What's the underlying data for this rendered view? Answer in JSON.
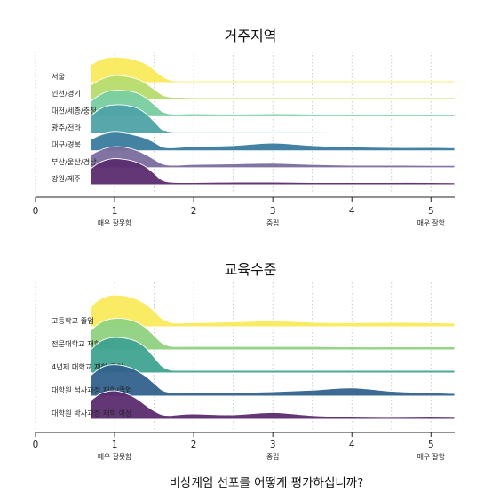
{
  "caption": "비상계엄 선포를 어떻게 평가하십니까?",
  "chart_data": [
    {
      "type": "ridgeline",
      "title": "거주지역",
      "xlim": [
        0,
        5.3
      ],
      "x_ticks": [
        "0",
        "1",
        "2",
        "3",
        "4",
        "5"
      ],
      "x_anchor_labels": [
        {
          "x": 1,
          "label": "매우 잘못함"
        },
        {
          "x": 3,
          "label": "중립"
        },
        {
          "x": 5,
          "label": "매우 잘함"
        }
      ],
      "grid": "vertical dotted at 0.5 steps",
      "series": [
        {
          "name": "서울",
          "color": "#f9ea5b",
          "x": [
            0.7,
            0.8,
            0.9,
            1.0,
            1.1,
            1.2,
            1.3,
            1.4,
            1.5,
            1.6,
            1.7,
            1.8,
            2.0,
            2.5,
            3.0,
            3.5,
            4.0,
            4.5,
            5.0,
            5.3
          ],
          "density": [
            0.55,
            0.7,
            0.78,
            0.8,
            0.79,
            0.75,
            0.68,
            0.58,
            0.4,
            0.2,
            0.08,
            0.05,
            0.05,
            0.05,
            0.05,
            0.05,
            0.05,
            0.05,
            0.05,
            0.05
          ]
        },
        {
          "name": "인천/경기",
          "color": "#b7dc6d",
          "x": [
            0.7,
            0.8,
            0.9,
            1.0,
            1.1,
            1.2,
            1.3,
            1.4,
            1.5,
            1.6,
            1.7,
            1.8,
            2.0,
            2.5,
            3.0,
            3.5,
            4.0,
            4.5,
            5.0,
            5.3
          ],
          "density": [
            0.45,
            0.6,
            0.7,
            0.75,
            0.74,
            0.7,
            0.63,
            0.5,
            0.32,
            0.15,
            0.08,
            0.07,
            0.06,
            0.06,
            0.06,
            0.06,
            0.06,
            0.06,
            0.06,
            0.06
          ]
        },
        {
          "name": "대전/세종/충청",
          "color": "#79cda0",
          "x": [
            0.7,
            0.8,
            0.9,
            1.0,
            1.1,
            1.2,
            1.3,
            1.4,
            1.5,
            1.6,
            1.7,
            1.8,
            2.0,
            2.5,
            3.0,
            3.5,
            4.0,
            4.5,
            5.0,
            5.3
          ],
          "density": [
            0.48,
            0.66,
            0.78,
            0.82,
            0.82,
            0.79,
            0.72,
            0.58,
            0.38,
            0.16,
            0.09,
            0.08,
            0.09,
            0.08,
            0.09,
            0.08,
            0.06,
            0.06,
            0.07,
            0.06
          ]
        },
        {
          "name": "광주/전라",
          "color": "#4da3a6",
          "x": [
            0.7,
            0.8,
            0.9,
            1.0,
            1.1,
            1.2,
            1.3,
            1.4,
            1.5,
            1.6,
            1.7,
            1.8,
            2.0,
            2.5,
            3.0,
            3.5,
            4.0,
            4.5,
            5.0,
            5.3
          ],
          "density": [
            0.55,
            0.75,
            0.86,
            0.9,
            0.9,
            0.86,
            0.78,
            0.62,
            0.38,
            0.13,
            0.04,
            0.03,
            0.03,
            0.03,
            0.03,
            0.03,
            0.02,
            0.02,
            0.02,
            0.02
          ]
        },
        {
          "name": "대구/경북",
          "color": "#3a7b9f",
          "x": [
            0.7,
            0.8,
            0.9,
            1.0,
            1.1,
            1.2,
            1.3,
            1.4,
            1.5,
            1.6,
            1.7,
            1.8,
            2.0,
            2.5,
            3.0,
            3.5,
            4.0,
            4.5,
            5.0,
            5.3
          ],
          "density": [
            0.35,
            0.47,
            0.55,
            0.58,
            0.56,
            0.52,
            0.46,
            0.38,
            0.26,
            0.12,
            0.09,
            0.1,
            0.13,
            0.16,
            0.24,
            0.16,
            0.12,
            0.1,
            0.1,
            0.09
          ]
        },
        {
          "name": "부산/울산/경남",
          "color": "#7a6d9e",
          "x": [
            0.7,
            0.8,
            0.9,
            1.0,
            1.1,
            1.2,
            1.3,
            1.4,
            1.5,
            1.6,
            1.7,
            1.8,
            2.0,
            2.5,
            3.0,
            3.5,
            4.0,
            4.5,
            5.0,
            5.3
          ],
          "density": [
            0.4,
            0.53,
            0.62,
            0.66,
            0.65,
            0.6,
            0.52,
            0.4,
            0.26,
            0.12,
            0.08,
            0.08,
            0.1,
            0.12,
            0.14,
            0.1,
            0.08,
            0.08,
            0.07,
            0.07
          ]
        },
        {
          "name": "강원/제주",
          "color": "#5b2c6f",
          "x": [
            0.7,
            0.8,
            0.9,
            1.0,
            1.1,
            1.2,
            1.3,
            1.4,
            1.5,
            1.6,
            1.7,
            1.8,
            2.0,
            2.5,
            3.0,
            3.5,
            4.0,
            4.5,
            5.0,
            5.3
          ],
          "density": [
            0.5,
            0.68,
            0.78,
            0.82,
            0.8,
            0.76,
            0.68,
            0.55,
            0.35,
            0.14,
            0.08,
            0.07,
            0.07,
            0.08,
            0.08,
            0.07,
            0.07,
            0.07,
            0.07,
            0.06
          ]
        }
      ]
    },
    {
      "type": "ridgeline",
      "title": "교육수준",
      "xlim": [
        0,
        5.3
      ],
      "x_ticks": [
        "0",
        "1",
        "2",
        "3",
        "4",
        "5"
      ],
      "x_anchor_labels": [
        {
          "x": 1,
          "label": "매우 잘못함"
        },
        {
          "x": 3,
          "label": "중립"
        },
        {
          "x": 5,
          "label": "매우 잘함"
        }
      ],
      "grid": "vertical dotted at 0.5 steps",
      "series": [
        {
          "name": "고등학교 졸업",
          "color": "#f9ea5b",
          "x": [
            0.7,
            0.8,
            0.9,
            1.0,
            1.1,
            1.2,
            1.3,
            1.4,
            1.5,
            1.6,
            1.7,
            1.8,
            2.0,
            2.5,
            3.0,
            3.5,
            4.0,
            4.5,
            5.0,
            5.3
          ],
          "density": [
            0.55,
            0.72,
            0.82,
            0.85,
            0.84,
            0.8,
            0.72,
            0.6,
            0.42,
            0.22,
            0.12,
            0.1,
            0.11,
            0.13,
            0.16,
            0.12,
            0.11,
            0.12,
            0.11,
            0.1
          ]
        },
        {
          "name": "전문대학교 재학/졸업",
          "color": "#8fd27f",
          "x": [
            0.7,
            0.8,
            0.9,
            1.0,
            1.1,
            1.2,
            1.3,
            1.4,
            1.5,
            1.6,
            1.7,
            1.8,
            2.0,
            2.5,
            3.0,
            3.5,
            4.0,
            4.5,
            5.0,
            5.3
          ],
          "density": [
            0.52,
            0.7,
            0.8,
            0.84,
            0.84,
            0.8,
            0.72,
            0.58,
            0.38,
            0.18,
            0.1,
            0.09,
            0.09,
            0.09,
            0.09,
            0.09,
            0.08,
            0.08,
            0.08,
            0.08
          ]
        },
        {
          "name": "4년제 대학교 재학/졸업",
          "color": "#3fa390",
          "x": [
            0.7,
            0.8,
            0.9,
            1.0,
            1.1,
            1.2,
            1.3,
            1.4,
            1.5,
            1.6,
            1.7,
            1.8,
            2.0,
            2.5,
            3.0,
            3.5,
            4.0,
            4.5,
            5.0,
            5.3
          ],
          "density": [
            0.62,
            0.82,
            0.92,
            0.95,
            0.94,
            0.9,
            0.82,
            0.66,
            0.42,
            0.18,
            0.08,
            0.07,
            0.07,
            0.07,
            0.07,
            0.07,
            0.07,
            0.07,
            0.07,
            0.07
          ]
        },
        {
          "name": "대학원 석사과정 재학/졸업",
          "color": "#33628d",
          "x": [
            0.7,
            0.8,
            0.9,
            1.0,
            1.1,
            1.2,
            1.3,
            1.4,
            1.5,
            1.6,
            1.7,
            1.8,
            2.0,
            2.5,
            3.0,
            3.5,
            4.0,
            4.5,
            5.0,
            5.3
          ],
          "density": [
            0.55,
            0.72,
            0.82,
            0.84,
            0.82,
            0.76,
            0.66,
            0.52,
            0.34,
            0.16,
            0.1,
            0.09,
            0.09,
            0.09,
            0.12,
            0.16,
            0.22,
            0.13,
            0.09,
            0.07
          ]
        },
        {
          "name": "대학원 박사과정 재학 이상",
          "color": "#5b2c6f",
          "x": [
            0.7,
            0.8,
            0.9,
            1.0,
            1.1,
            1.2,
            1.3,
            1.4,
            1.5,
            1.6,
            1.7,
            1.8,
            2.0,
            2.5,
            3.0,
            3.5,
            4.0,
            4.5,
            5.0,
            5.3
          ],
          "density": [
            0.5,
            0.66,
            0.74,
            0.76,
            0.72,
            0.64,
            0.52,
            0.36,
            0.22,
            0.12,
            0.1,
            0.12,
            0.14,
            0.12,
            0.18,
            0.1,
            0.06,
            0.05,
            0.06,
            0.05
          ]
        }
      ]
    }
  ]
}
